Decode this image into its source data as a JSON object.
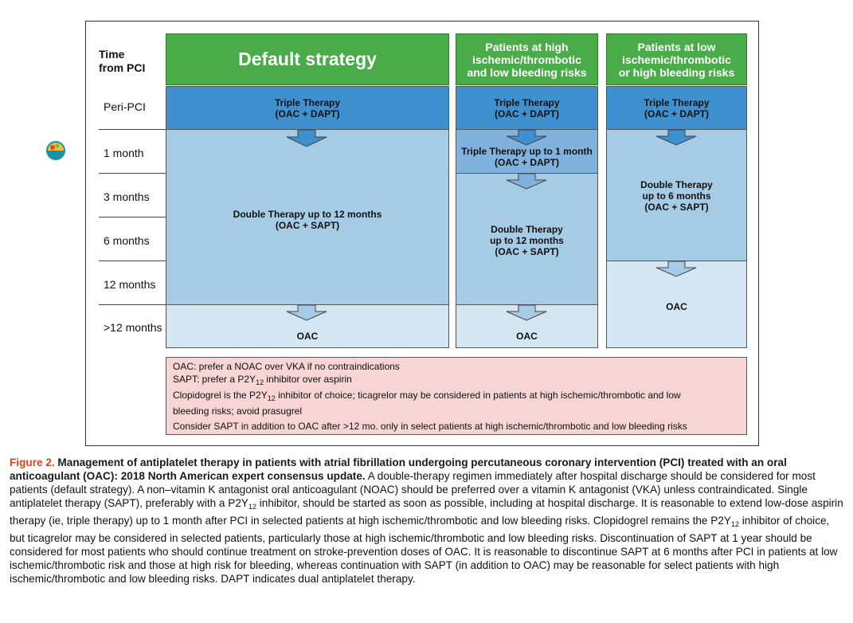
{
  "headers": {
    "time": [
      "Time",
      "from PCI"
    ],
    "default": "Default strategy",
    "high_ischemic": [
      "Patients at high",
      "ischemic/thrombotic",
      "and low bleeding risks"
    ],
    "low_ischemic": [
      "Patients at low",
      "ischemic/thrombotic",
      "or high bleeding risks"
    ]
  },
  "rows": [
    "Peri-PCI",
    "1 month",
    "3 months",
    "6 months",
    "12 months",
    ">12 months"
  ],
  "default_col": {
    "triple": [
      "Triple Therapy",
      "(OAC + DAPT)"
    ],
    "double": [
      "Double Therapy up to 12 months",
      "(OAC + SAPT)"
    ],
    "oac": "OAC"
  },
  "high_col": {
    "triple": [
      "Triple Therapy",
      "(OAC + DAPT)"
    ],
    "triple_1m": [
      "Triple Therapy up to 1 month",
      "(OAC + DAPT)"
    ],
    "double": [
      "Double Therapy",
      "up to 12 months",
      "(OAC + SAPT)"
    ],
    "oac": "OAC"
  },
  "low_col": {
    "triple": [
      "Triple Therapy",
      "(OAC + DAPT)"
    ],
    "double": [
      "Double Therapy",
      "up to 6 months",
      "(OAC + SAPT)"
    ],
    "oac": "OAC"
  },
  "notes": {
    "n1": "OAC: prefer a NOAC over VKA if no contraindications",
    "n2a": "SAPT: prefer a P2Y",
    "n2sub": "12",
    "n2b": " inhibitor over aspirin",
    "n3a": "Clopidogrel is the P2Y",
    "n3sub": "12",
    "n3b": " inhibitor of choice; ticagrelor may be considered in patients at high ischemic/thrombotic and low",
    "n3c": "bleeding risks; avoid prasugrel",
    "n4": "Consider SAPT in addition to OAC after >12 mo. only in select patients at high ischemic/thrombotic and low bleeding risks"
  },
  "caption": {
    "label": "Figure 2.",
    "title": " Management of antiplatelet therapy in patients with atrial fibrillation undergoing percutaneous coronary intervention (PCI) treated with an oral anticoagulant (OAC): 2018 North American expert consensus update.",
    "body_a": "A double-therapy regimen immediately after hospital discharge should be considered for most patients (default strategy). A non–vitamin K antagonist oral anticoagulant (NOAC) should be preferred over a vitamin K antagonist (VKA) unless contraindicated. Single antiplatelet therapy (SAPT), preferably with a P2Y",
    "sub1": "12",
    "body_b": " inhibitor, should be started as soon as possible, including at hospital discharge. It is reasonable to extend low-dose aspirin therapy (ie, triple therapy) up to 1 month after PCI in selected patients at high ischemic/thrombotic and low bleeding risks. Clopidogrel remains the P2Y",
    "sub2": "12",
    "body_c": " inhibitor of choice, but ticagrelor may be considered in selected patients, particularly those at high ischemic/thrombotic and low bleeding risks. Discontinuation of SAPT at 1 year should be considered for most patients who should continue treatment on stroke-prevention doses of OAC. It is reasonable to discontinue SAPT at 6 months after PCI in patients at low ischemic/thrombotic risk and those at high risk for bleeding, whereas continuation with SAPT (in addition to OAC) may be reasonable for select patients with high ischemic/thrombotic and low bleeding risks. DAPT indicates dual antiplatelet therapy."
  },
  "colors": {
    "header_green": "#4aab49",
    "triple_blue": "#3f90cf",
    "double_blue": "#a5cbe5",
    "oac_blue": "#d4e6f2",
    "notes_pink": "#f6d5d4",
    "figure_label": "#d8441f"
  }
}
